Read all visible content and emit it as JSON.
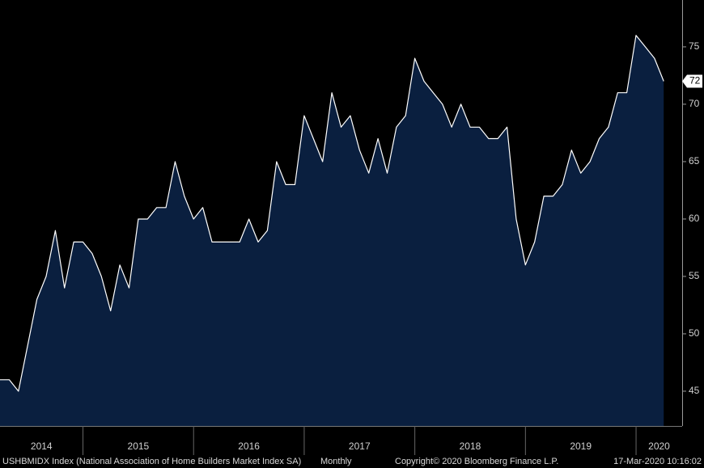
{
  "chart_data": {
    "type": "area",
    "series_name": "USHBMIDX Index (National Association of Home Builders Market Index SA)",
    "frequency": "Monthly",
    "copyright": "Copyright© 2020 Bloomberg Finance L.P.",
    "timestamp": "17-Mar-2020 10:16:02",
    "fill_color": "#0a1f3f",
    "line_color": "#ffffff",
    "x": [
      "2014-03",
      "2014-04",
      "2014-05",
      "2014-06",
      "2014-07",
      "2014-08",
      "2014-09",
      "2014-10",
      "2014-11",
      "2014-12",
      "2015-01",
      "2015-02",
      "2015-03",
      "2015-04",
      "2015-05",
      "2015-06",
      "2015-07",
      "2015-08",
      "2015-09",
      "2015-10",
      "2015-11",
      "2015-12",
      "2016-01",
      "2016-02",
      "2016-03",
      "2016-04",
      "2016-05",
      "2016-06",
      "2016-07",
      "2016-08",
      "2016-09",
      "2016-10",
      "2016-11",
      "2016-12",
      "2017-01",
      "2017-02",
      "2017-03",
      "2017-04",
      "2017-05",
      "2017-06",
      "2017-07",
      "2017-08",
      "2017-09",
      "2017-10",
      "2017-11",
      "2017-12",
      "2018-01",
      "2018-02",
      "2018-03",
      "2018-04",
      "2018-05",
      "2018-06",
      "2018-07",
      "2018-08",
      "2018-09",
      "2018-10",
      "2018-11",
      "2018-12",
      "2019-01",
      "2019-02",
      "2019-03",
      "2019-04",
      "2019-05",
      "2019-06",
      "2019-07",
      "2019-08",
      "2019-09",
      "2019-10",
      "2019-11",
      "2019-12",
      "2020-01",
      "2020-02",
      "2020-03"
    ],
    "values": [
      46,
      46,
      45,
      49,
      53,
      55,
      59,
      54,
      58,
      58,
      57,
      55,
      52,
      56,
      54,
      60,
      60,
      61,
      61,
      65,
      62,
      60,
      61,
      58,
      58,
      58,
      58,
      60,
      58,
      59,
      65,
      63,
      63,
      69,
      67,
      65,
      71,
      68,
      69,
      66,
      64,
      67,
      64,
      68,
      69,
      74,
      72,
      71,
      70,
      68,
      70,
      68,
      68,
      67,
      67,
      68,
      60,
      56,
      58,
      62,
      62,
      63,
      66,
      64,
      65,
      67,
      68,
      71,
      71,
      76,
      75,
      74,
      72
    ],
    "xlim": [
      "2014-03",
      "2020-05"
    ],
    "xticks": [
      "2014",
      "2015",
      "2016",
      "2017",
      "2018",
      "2019",
      "2020"
    ],
    "ylim": [
      41.97,
      79.08
    ],
    "yticks": [
      45,
      50,
      55,
      60,
      65,
      70,
      75
    ]
  }
}
